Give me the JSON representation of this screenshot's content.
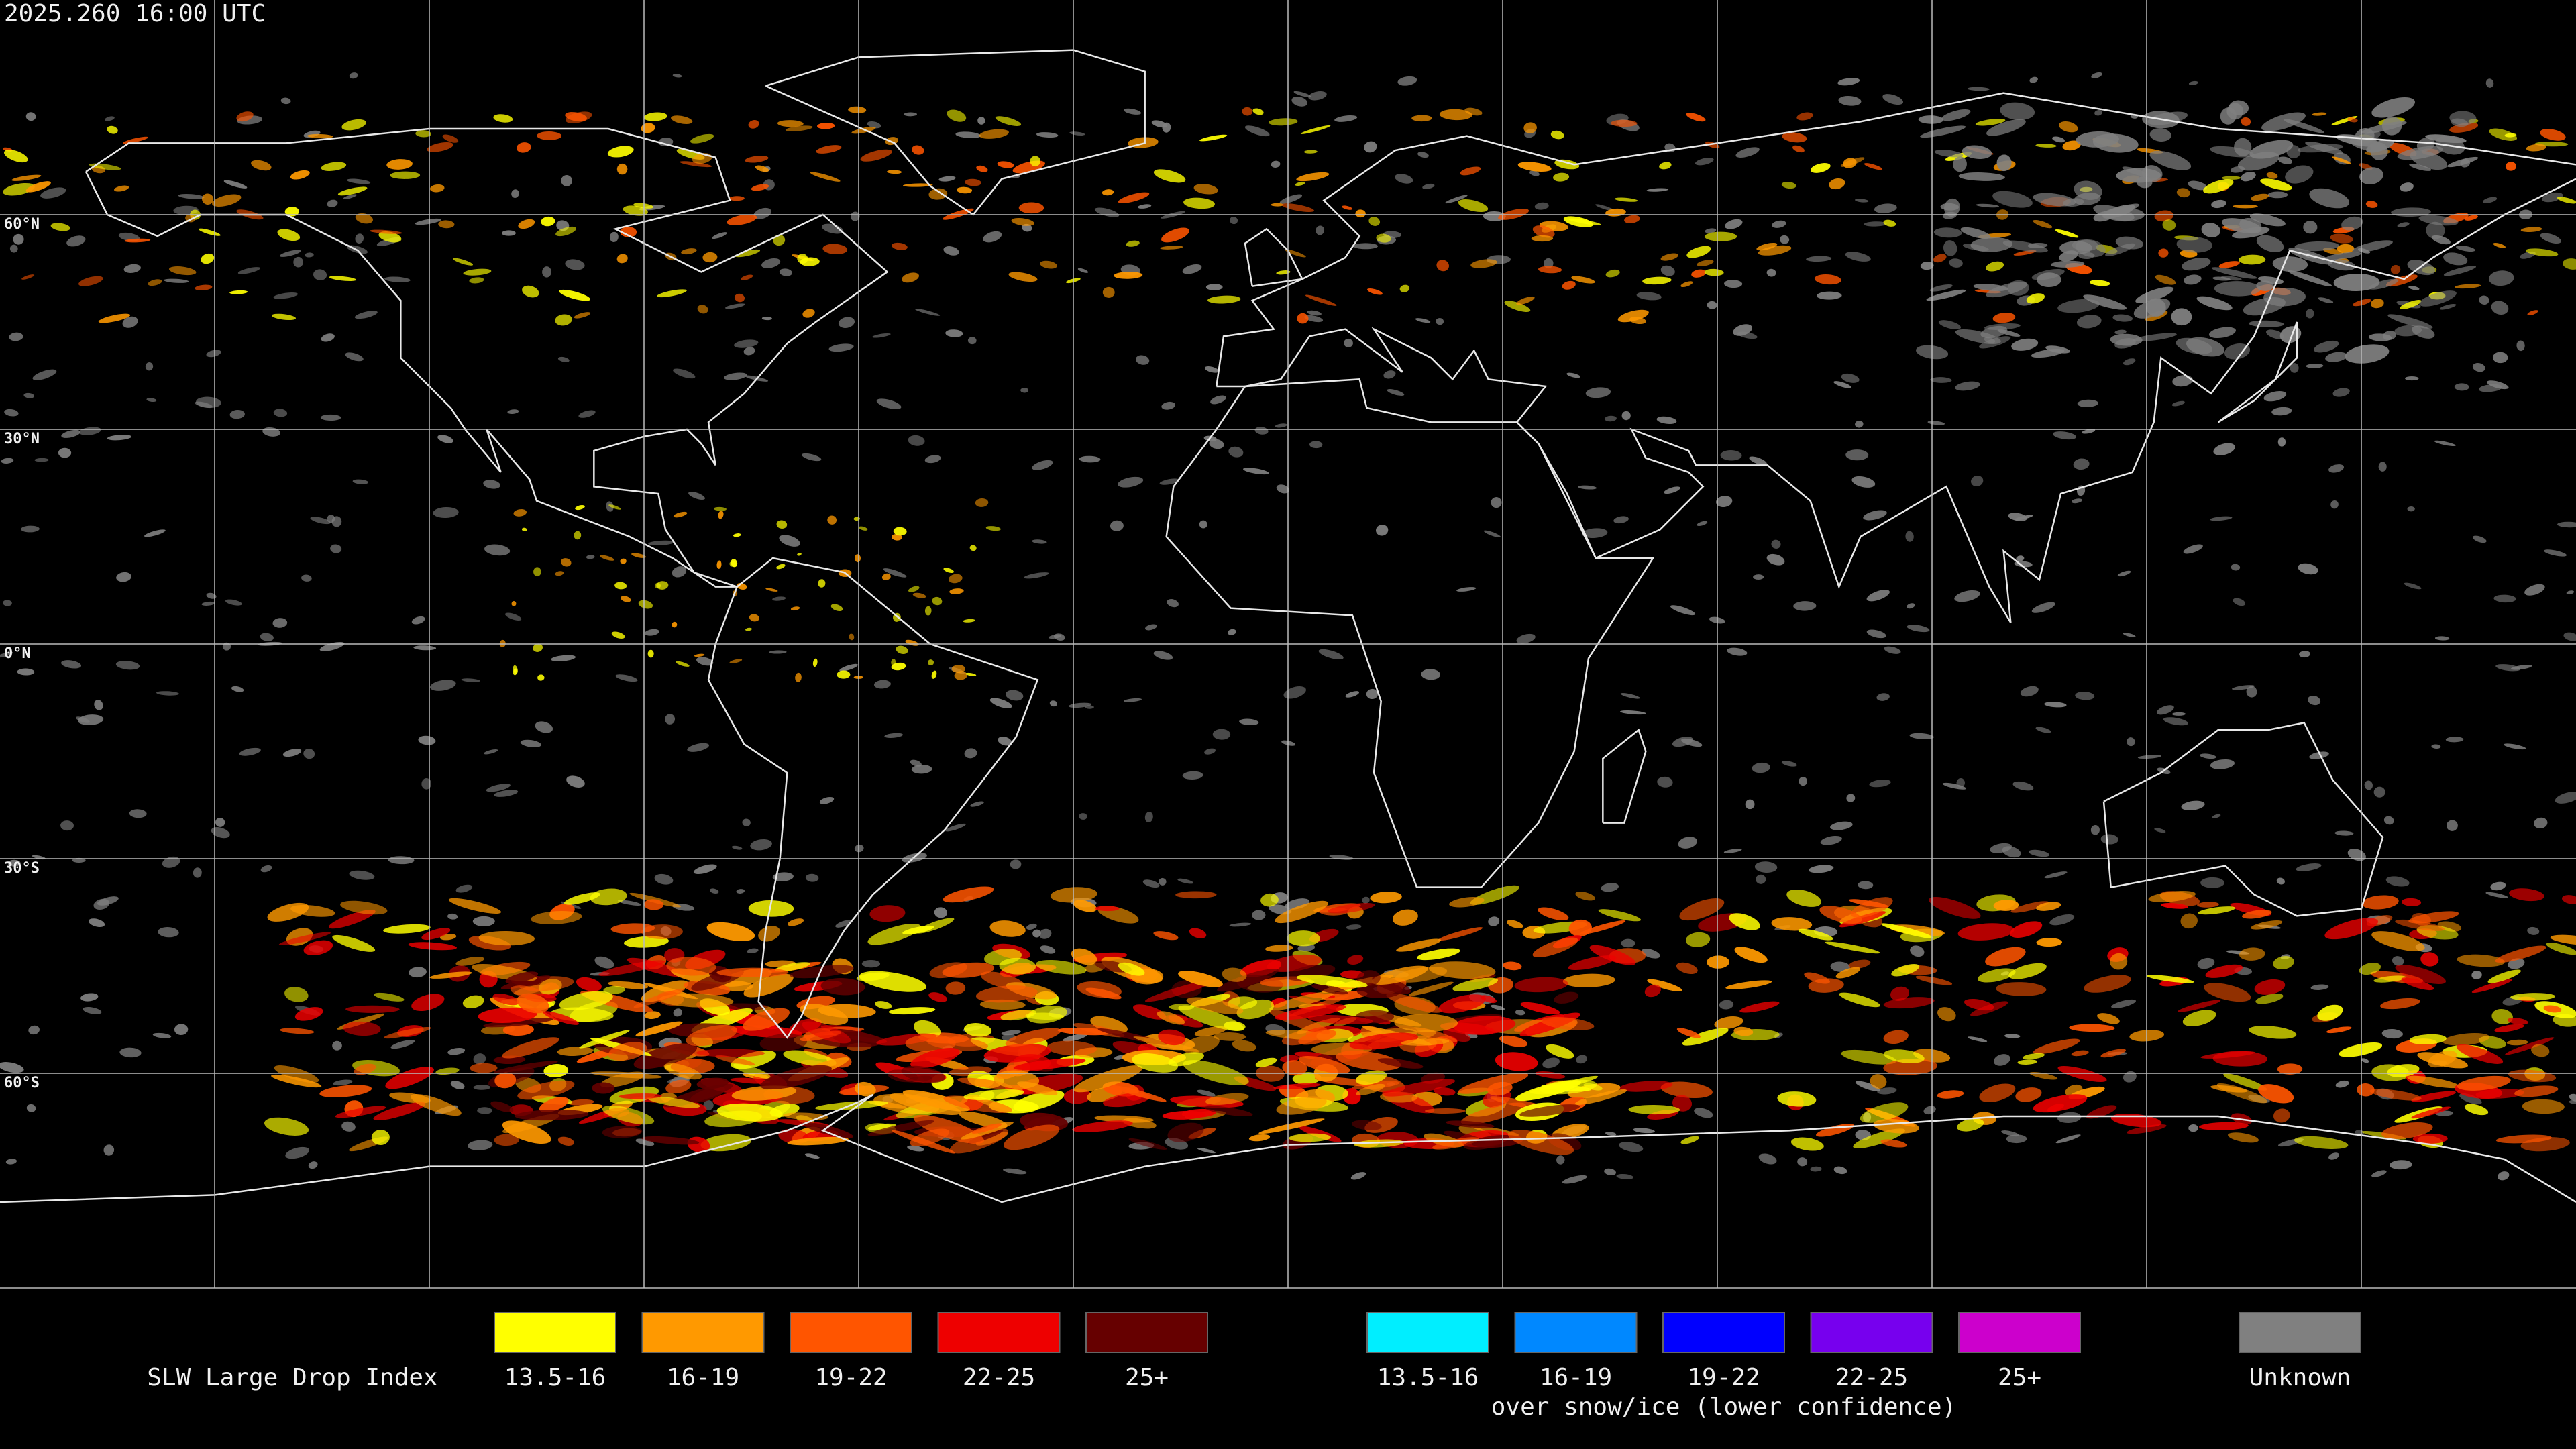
{
  "timestamp": "2025.260 16:00 UTC",
  "latitude_labels": [
    "60°N",
    "30°N",
    "0°N",
    "30°S",
    "60°S"
  ],
  "legend": {
    "title": "SLW Large Drop Index",
    "groups": [
      {
        "items": [
          {
            "label": "13.5-16",
            "color": "#ffff00"
          },
          {
            "label": "16-19",
            "color": "#ff9900"
          },
          {
            "label": "19-22",
            "color": "#ff5500"
          },
          {
            "label": "22-25",
            "color": "#ee0000"
          },
          {
            "label": "25+",
            "color": "#660000"
          }
        ]
      },
      {
        "items": [
          {
            "label": "13.5-16",
            "color": "#00eeff"
          },
          {
            "label": "16-19",
            "color": "#0088ff"
          },
          {
            "label": "19-22",
            "color": "#0000ff"
          },
          {
            "label": "22-25",
            "color": "#7700ee"
          },
          {
            "label": "25+",
            "color": "#cc00cc"
          }
        ],
        "caption": "over snow/ice (lower confidence)"
      },
      {
        "items": [
          {
            "label": "Unknown",
            "color": "#808080"
          }
        ]
      }
    ]
  }
}
